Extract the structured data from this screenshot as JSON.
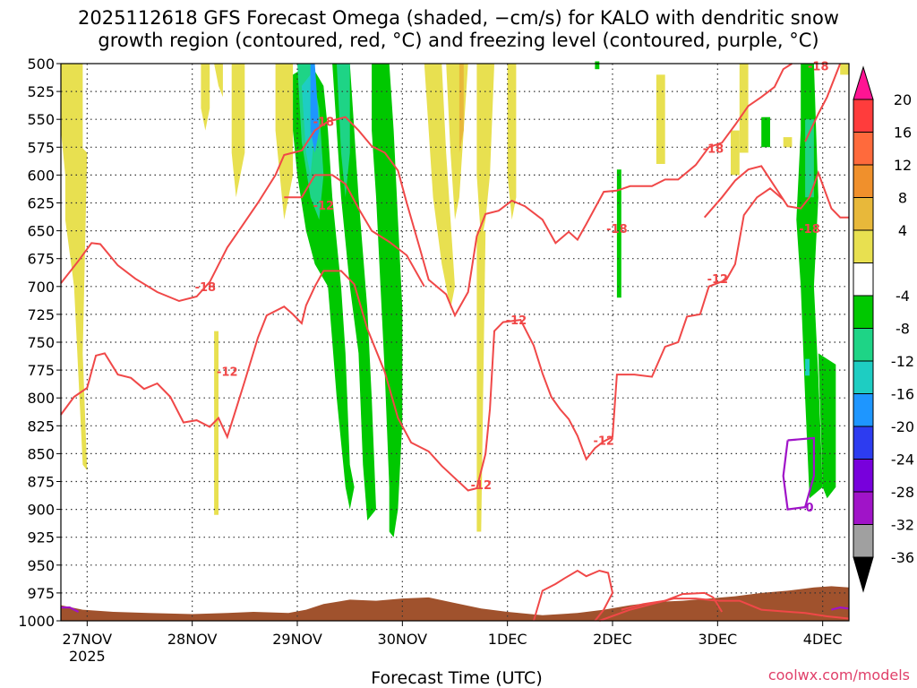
{
  "chart_data": {
    "type": "heatmap",
    "title_line1": "2025112618 GFS Forecast Omega (shaded, −cm/s) for KALO with dendritic snow",
    "title_line2": "growth region (contoured, red, °C) and freezing level (contoured, purple, °C)",
    "xlabel": "Forecast Time (UTC)",
    "credit": "coolwx.com/models",
    "y_ticks": [
      500,
      525,
      550,
      575,
      600,
      625,
      650,
      675,
      700,
      725,
      750,
      775,
      800,
      825,
      850,
      875,
      900,
      925,
      950,
      975,
      1000
    ],
    "ylim": [
      1000,
      500
    ],
    "x_ticks": [
      {
        "label": "27NOV",
        "label2": "2025",
        "hour": 6
      },
      {
        "label": "28NOV",
        "hour": 30
      },
      {
        "label": "29NOV",
        "hour": 54
      },
      {
        "label": "30NOV",
        "hour": 78
      },
      {
        "label": "1DEC",
        "hour": 102
      },
      {
        "label": "2DEC",
        "hour": 126
      },
      {
        "label": "3DEC",
        "hour": 150
      },
      {
        "label": "4DEC",
        "hour": 174
      }
    ],
    "xlim_hours": [
      0,
      180
    ],
    "grid": true,
    "colorbar": {
      "labels": [
        "20",
        "16",
        "12",
        "8",
        "4",
        "-4",
        "-8",
        "-12",
        "-16",
        "-20",
        "-24",
        "-28",
        "-32",
        "-36"
      ],
      "colors": [
        "#ff1493",
        "#ff3c3c",
        "#ff6a3c",
        "#f0902c",
        "#e8b83a",
        "#e8e050",
        "#ffffff",
        "#00c800",
        "#1ed486",
        "#1ecdc2",
        "#1e96ff",
        "#2d3cf0",
        "#7800dc",
        "#a014c8",
        "#a0a0a0",
        "#000000"
      ]
    },
    "contour_labels": {
      "dgz_minus18": "-18",
      "dgz_minus12": "-12",
      "freezing": "0"
    },
    "dgz_minus18_upper": [
      [
        0,
        697
      ],
      [
        4,
        677
      ],
      [
        7,
        661
      ],
      [
        9,
        662
      ],
      [
        13,
        681
      ],
      [
        17,
        693
      ],
      [
        22,
        705
      ],
      [
        27,
        713
      ],
      [
        31,
        709
      ],
      [
        34,
        696
      ],
      [
        38,
        665
      ],
      [
        41,
        648
      ],
      [
        45,
        625
      ],
      [
        49,
        600
      ],
      [
        51,
        582
      ],
      [
        55,
        578
      ],
      [
        58,
        560
      ],
      [
        61,
        552
      ],
      [
        65,
        548
      ],
      [
        68,
        560
      ],
      [
        71,
        574
      ],
      [
        74,
        580
      ],
      [
        77,
        596
      ],
      [
        79,
        625
      ],
      [
        82,
        666
      ],
      [
        84,
        694
      ],
      [
        88,
        707
      ],
      [
        90,
        726
      ],
      [
        93,
        705
      ],
      [
        95,
        655
      ],
      [
        97,
        635
      ],
      [
        100,
        632
      ],
      [
        103,
        623
      ],
      [
        106,
        628
      ],
      [
        110,
        640
      ],
      [
        113,
        661
      ],
      [
        116,
        651
      ],
      [
        118,
        658
      ],
      [
        120,
        644
      ],
      [
        124,
        615
      ],
      [
        127,
        614
      ],
      [
        130,
        610
      ],
      [
        135,
        610
      ],
      [
        138,
        604
      ],
      [
        141,
        604
      ],
      [
        145,
        591
      ],
      [
        148,
        575
      ],
      [
        151,
        571
      ],
      [
        154,
        555
      ],
      [
        157,
        538
      ],
      [
        160,
        530
      ],
      [
        163,
        521
      ],
      [
        165,
        505
      ],
      [
        167,
        500
      ]
    ],
    "dgz_minus18_lower": [
      [
        51,
        620
      ],
      [
        55,
        620
      ],
      [
        58,
        600
      ],
      [
        62,
        600
      ],
      [
        65,
        608
      ],
      [
        68,
        630
      ],
      [
        71,
        650
      ],
      [
        75,
        660
      ],
      [
        79,
        672
      ],
      [
        83,
        700
      ]
    ],
    "dgz_minus18_right": [
      [
        147,
        638
      ],
      [
        151,
        620
      ],
      [
        154,
        605
      ],
      [
        157,
        595
      ],
      [
        160,
        592
      ],
      [
        163,
        610
      ],
      [
        166,
        628
      ],
      [
        169,
        630
      ],
      [
        171,
        620
      ],
      [
        173,
        598
      ],
      [
        176,
        630
      ],
      [
        178,
        638
      ],
      [
        180,
        638
      ]
    ],
    "dgz_minus18_topright": [
      [
        170,
        570
      ],
      [
        173,
        545
      ],
      [
        175,
        530
      ],
      [
        178,
        500
      ]
    ],
    "dgz_minus12_lower": [
      [
        0,
        815
      ],
      [
        3,
        799
      ],
      [
        6,
        791
      ],
      [
        8,
        762
      ],
      [
        10,
        760
      ],
      [
        13,
        779
      ],
      [
        16,
        782
      ],
      [
        19,
        792
      ],
      [
        22,
        787
      ],
      [
        25,
        799
      ],
      [
        28,
        822
      ],
      [
        31,
        820
      ],
      [
        34,
        826
      ],
      [
        36,
        818
      ],
      [
        38,
        835
      ],
      [
        40,
        810
      ],
      [
        42,
        785
      ],
      [
        45,
        746
      ],
      [
        47,
        726
      ],
      [
        51,
        718
      ],
      [
        53,
        725
      ],
      [
        55,
        733
      ],
      [
        56,
        717
      ],
      [
        58,
        700
      ],
      [
        60,
        686
      ],
      [
        64,
        686
      ],
      [
        67,
        698
      ],
      [
        70,
        738
      ],
      [
        74,
        777
      ],
      [
        77,
        818
      ],
      [
        80,
        840
      ],
      [
        84,
        848
      ],
      [
        87,
        861
      ],
      [
        90,
        872
      ],
      [
        93,
        883
      ],
      [
        95,
        881
      ],
      [
        97,
        850
      ],
      [
        98,
        810
      ],
      [
        99,
        740
      ],
      [
        101,
        732
      ],
      [
        105,
        730
      ],
      [
        108,
        753
      ],
      [
        110,
        778
      ],
      [
        112,
        799
      ],
      [
        114,
        810
      ],
      [
        116,
        819
      ],
      [
        118,
        834
      ],
      [
        120,
        855
      ],
      [
        122,
        845
      ],
      [
        124,
        839
      ],
      [
        126,
        835
      ],
      [
        127,
        779
      ],
      [
        131,
        779
      ],
      [
        135,
        781
      ],
      [
        138,
        754
      ],
      [
        141,
        750
      ],
      [
        143,
        727
      ],
      [
        146,
        725
      ],
      [
        148,
        700
      ],
      [
        152,
        694
      ],
      [
        154,
        680
      ],
      [
        156,
        636
      ],
      [
        159,
        620
      ],
      [
        162,
        612
      ],
      [
        165,
        622
      ]
    ],
    "dgz_minus12_bottom": [
      [
        108,
        1000
      ],
      [
        110,
        973
      ],
      [
        113,
        967
      ],
      [
        115,
        962
      ],
      [
        118,
        955
      ],
      [
        120,
        960
      ],
      [
        123,
        955
      ],
      [
        125,
        957
      ],
      [
        126,
        975
      ],
      [
        124,
        990
      ],
      [
        122,
        1000
      ]
    ],
    "dgz_minus12_bottom2": [
      [
        123,
        1000
      ],
      [
        130,
        990
      ],
      [
        135,
        985
      ],
      [
        140,
        980
      ],
      [
        145,
        980
      ],
      [
        150,
        982
      ],
      [
        155,
        982
      ],
      [
        160,
        990
      ],
      [
        170,
        993
      ],
      [
        175,
        996
      ],
      [
        180,
        998
      ]
    ],
    "dgz_minus12_bottom3": [
      [
        128,
        990
      ],
      [
        133,
        985
      ],
      [
        138,
        982
      ],
      [
        142,
        976
      ],
      [
        147,
        975
      ],
      [
        149,
        979
      ],
      [
        151,
        992
      ]
    ],
    "freezing_right": [
      [
        166,
        838
      ],
      [
        172,
        836
      ],
      [
        172,
        870
      ],
      [
        170,
        898
      ],
      [
        166,
        900
      ],
      [
        165,
        870
      ],
      [
        166,
        838
      ]
    ],
    "freezing_left": [
      [
        0,
        988
      ],
      [
        2,
        988
      ],
      [
        4,
        992
      ]
    ],
    "freezing_right2": [
      [
        176,
        990
      ],
      [
        178,
        988
      ],
      [
        180,
        989
      ]
    ],
    "terrain": [
      [
        0,
        986
      ],
      [
        5,
        990
      ],
      [
        12,
        992
      ],
      [
        20,
        993
      ],
      [
        30,
        994
      ],
      [
        38,
        993
      ],
      [
        44,
        992
      ],
      [
        52,
        993
      ],
      [
        56,
        990
      ],
      [
        60,
        985
      ],
      [
        66,
        981
      ],
      [
        72,
        982
      ],
      [
        78,
        980
      ],
      [
        84,
        979
      ],
      [
        90,
        984
      ],
      [
        96,
        989
      ],
      [
        102,
        992
      ],
      [
        110,
        995
      ],
      [
        118,
        993
      ],
      [
        124,
        990
      ],
      [
        130,
        986
      ],
      [
        136,
        983
      ],
      [
        142,
        982
      ],
      [
        148,
        980
      ],
      [
        154,
        978
      ],
      [
        160,
        975
      ],
      [
        166,
        973
      ],
      [
        172,
        970
      ],
      [
        176,
        969
      ],
      [
        180,
        970
      ]
    ]
  }
}
